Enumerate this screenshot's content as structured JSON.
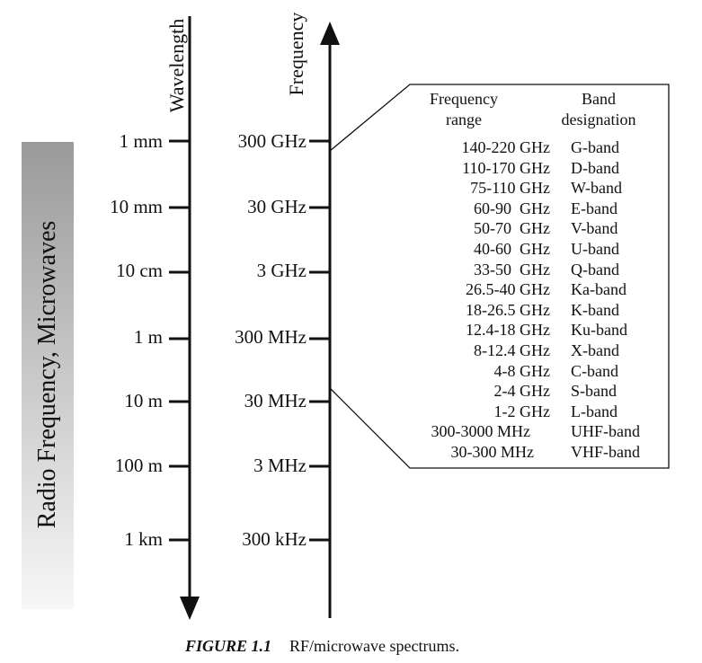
{
  "side_label": "Radio Frequency, Microwaves",
  "wavelength_axis": {
    "title": "Wavelength",
    "ticks": [
      "1 mm",
      "10 mm",
      "10 cm",
      "1 m",
      "10 m",
      "100 m",
      "1 km"
    ]
  },
  "frequency_axis": {
    "title": "Frequency",
    "ticks": [
      "300 GHz",
      "30 GHz",
      "3 GHz",
      "300 MHz",
      "30 MHz",
      "3 MHz",
      "300 kHz"
    ]
  },
  "band_table": {
    "col_range": [
      "Frequency",
      "range"
    ],
    "col_band": [
      "Band",
      "designation"
    ],
    "rows": [
      {
        "range": "140-220 GHz",
        "band": "G-band"
      },
      {
        "range": "110-170 GHz",
        "band": "D-band"
      },
      {
        "range": "75-110 GHz",
        "band": "W-band"
      },
      {
        "range": "60-90  GHz",
        "band": "E-band"
      },
      {
        "range": "50-70  GHz",
        "band": "V-band"
      },
      {
        "range": "40-60  GHz",
        "band": "U-band"
      },
      {
        "range": "33-50  GHz",
        "band": "Q-band"
      },
      {
        "range": "26.5-40 GHz",
        "band": "Ka-band"
      },
      {
        "range": "18-26.5 GHz",
        "band": "K-band"
      },
      {
        "range": "12.4-18 GHz",
        "band": "Ku-band"
      },
      {
        "range": "8-12.4 GHz",
        "band": "X-band"
      },
      {
        "range": "4-8 GHz",
        "band": "C-band"
      },
      {
        "range": "2-4 GHz",
        "band": "S-band"
      },
      {
        "range": "1-2 GHz",
        "band": "L-band"
      },
      {
        "range": "300-3000 MHz",
        "band": "UHF-band"
      },
      {
        "range": "30-300 MHz",
        "band": "VHF-band"
      }
    ]
  },
  "caption": {
    "figure": "FIGURE 1.1",
    "text": "RF/microwave spectrums."
  },
  "colors": {
    "ink": "#111111",
    "gradient_dark": "#9a9a9a",
    "gradient_light": "#f7f7f7"
  }
}
